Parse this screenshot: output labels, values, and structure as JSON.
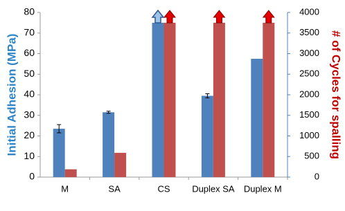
{
  "chart_data": {
    "type": "bar",
    "categories": [
      "M",
      "SA",
      "CS",
      "Duplex SA",
      "Duplex M"
    ],
    "series": [
      {
        "name": "Initial Adhesion (MPa)",
        "color": "#4f81bd",
        "values": [
          23.5,
          31.5,
          75,
          39.5,
          57.5
        ],
        "errors": [
          2,
          0.5,
          null,
          1,
          null
        ]
      },
      {
        "name": "# of Cycles for spalling",
        "color": "#c0504d",
        "axis": "y2",
        "values": [
          190,
          590,
          3750,
          3750,
          3750
        ]
      }
    ],
    "y_label": "Initial Adhesion (MPa)",
    "y2_label": "# of Cycles for spalling",
    "ylim": [
      0,
      80
    ],
    "yticks": [
      0,
      10,
      20,
      30,
      40,
      50,
      60,
      70,
      80
    ],
    "y2lim": [
      0,
      4000
    ],
    "y2ticks": [
      0,
      500,
      1000,
      1500,
      2000,
      2500,
      3000,
      3500,
      4000
    ],
    "grid": false
  }
}
